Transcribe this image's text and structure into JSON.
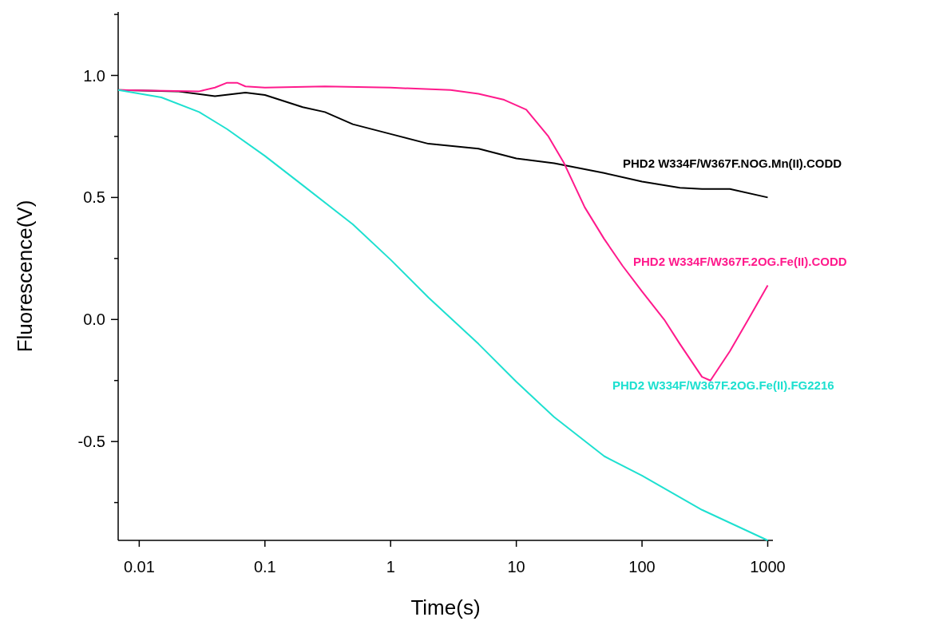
{
  "chart_data": {
    "type": "line",
    "xlabel": "Time(s)",
    "ylabel": "Fluorescence(V)",
    "log": "x",
    "xlim": [
      0.0068,
      1100
    ],
    "ylim": [
      -0.905,
      1.26
    ],
    "xticks": [
      0.01,
      0.1,
      1,
      10,
      100,
      1000
    ],
    "yticks": [
      {
        "value": -0.75,
        "label": null
      },
      {
        "value": -0.5,
        "label": "-0.5"
      },
      {
        "value": -0.25,
        "label": null
      },
      {
        "value": 0,
        "label": "0.0"
      },
      {
        "value": 0.25,
        "label": null
      },
      {
        "value": 0.5,
        "label": "0.5"
      },
      {
        "value": 0.75,
        "label": null
      },
      {
        "value": 1,
        "label": "1.0"
      },
      {
        "value": 1.25,
        "label": null
      }
    ],
    "grid": false,
    "series": [
      {
        "name": "PHD2 W334F/W367F.NOG.Mn(II).CODD",
        "color": "#000000",
        "x": [
          0.0068,
          0.02,
          0.04,
          0.07,
          0.1,
          0.2,
          0.3,
          0.5,
          1,
          2,
          5,
          10,
          20,
          50,
          100,
          200,
          300,
          500,
          1000
        ],
        "values": [
          0.94,
          0.935,
          0.915,
          0.93,
          0.92,
          0.87,
          0.85,
          0.8,
          0.76,
          0.72,
          0.7,
          0.66,
          0.64,
          0.6,
          0.565,
          0.54,
          0.535,
          0.535,
          0.5
        ]
      },
      {
        "name": "PHD2 W334F/W367F.2OG.Fe(II).CODD",
        "color": "#ff1a8c",
        "x": [
          0.0068,
          0.03,
          0.04,
          0.05,
          0.06,
          0.07,
          0.1,
          0.3,
          1,
          3,
          5,
          8,
          12,
          18,
          24,
          35,
          50,
          70,
          100,
          150,
          200,
          300,
          350,
          500,
          700,
          1000
        ],
        "values": [
          0.94,
          0.935,
          0.95,
          0.97,
          0.97,
          0.955,
          0.95,
          0.955,
          0.95,
          0.94,
          0.925,
          0.9,
          0.86,
          0.75,
          0.64,
          0.46,
          0.33,
          0.22,
          0.115,
          0.0,
          -0.1,
          -0.235,
          -0.25,
          -0.13,
          0.0,
          0.14
        ]
      },
      {
        "name": "PHD2 W334F/W367F.2OG.Fe(II).FG2216",
        "color": "#1ee0d0",
        "x": [
          0.0068,
          0.015,
          0.03,
          0.05,
          0.1,
          0.2,
          0.5,
          1,
          2,
          5,
          10,
          20,
          50,
          100,
          300,
          1000
        ],
        "values": [
          0.94,
          0.91,
          0.85,
          0.78,
          0.67,
          0.55,
          0.39,
          0.245,
          0.09,
          -0.1,
          -0.255,
          -0.4,
          -0.56,
          -0.64,
          -0.78,
          -0.905
        ]
      }
    ]
  }
}
